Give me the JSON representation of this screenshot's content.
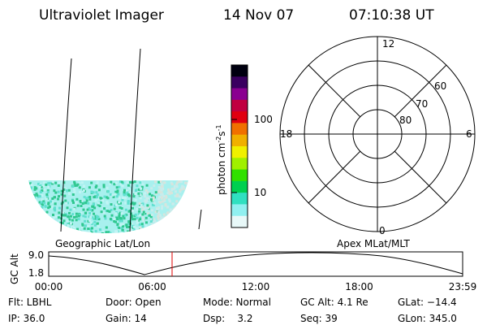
{
  "header": {
    "instrument": "Ultraviolet Imager",
    "date": "14 Nov 07",
    "time": "07:10:38 UT"
  },
  "colorbar": {
    "unit": "photon cm",
    "exp1": "-2",
    "unit2": "s",
    "exp2": "-1",
    "ticks": [
      "100",
      "10"
    ]
  },
  "polar": {
    "mlt_labels": [
      "12",
      "6",
      "0",
      "18"
    ],
    "lat_labels": [
      "60",
      "70",
      "80"
    ]
  },
  "map_labels": {
    "left": "Geographic Lat/Lon",
    "right": "Apex MLat/MLT"
  },
  "gc_alt_plot": {
    "ylabel": "GC Alt",
    "yticks": [
      "9.0",
      "1.8"
    ],
    "xticks": [
      "00:00",
      "06:00",
      "12:00",
      "18:00",
      "23:59"
    ]
  },
  "info": {
    "row1": [
      "Flt: LBHL",
      "Door: Open",
      "Mode: Normal",
      "GC Alt: 4.1 Re",
      "GLat: −14.4"
    ],
    "row2": [
      "IP: 36.0",
      "Gain: 14",
      "Dsp:    3.2",
      "Seq: 39",
      "GLon: 345.0"
    ]
  }
}
